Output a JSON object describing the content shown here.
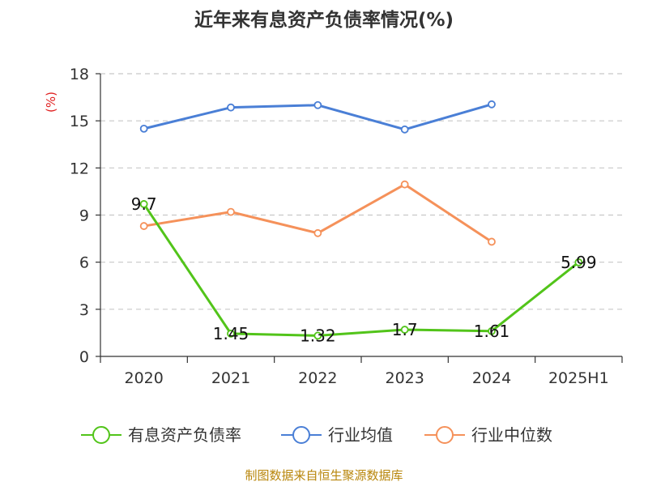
{
  "chart_data": {
    "type": "line",
    "title": "近年来有息资产负债率情况(%)",
    "ylabel": "(%)",
    "categories": [
      "2020",
      "2021",
      "2022",
      "2023",
      "2024",
      "2025H1"
    ],
    "ylim": [
      0,
      18
    ],
    "yticks": [
      "0",
      "3",
      "6",
      "9",
      "12",
      "15",
      "18"
    ],
    "grid": true,
    "legend_position": "bottom",
    "series": [
      {
        "name": "有息资产负债率",
        "color": "#52c41a",
        "values": [
          9.7,
          1.45,
          1.32,
          1.7,
          1.61,
          5.99
        ],
        "labels": [
          "9.7",
          "1.45",
          "1.32",
          "1.7",
          "1.61",
          "5.99"
        ]
      },
      {
        "name": "行业均值",
        "color": "#4a7fd6",
        "values": [
          14.5,
          15.85,
          16.0,
          14.45,
          16.05,
          null
        ]
      },
      {
        "name": "行业中位数",
        "color": "#f5915a",
        "values": [
          8.3,
          9.2,
          7.85,
          10.95,
          7.3,
          null
        ]
      }
    ]
  },
  "footer": {
    "source": "制图数据来自恒生聚源数据库"
  }
}
